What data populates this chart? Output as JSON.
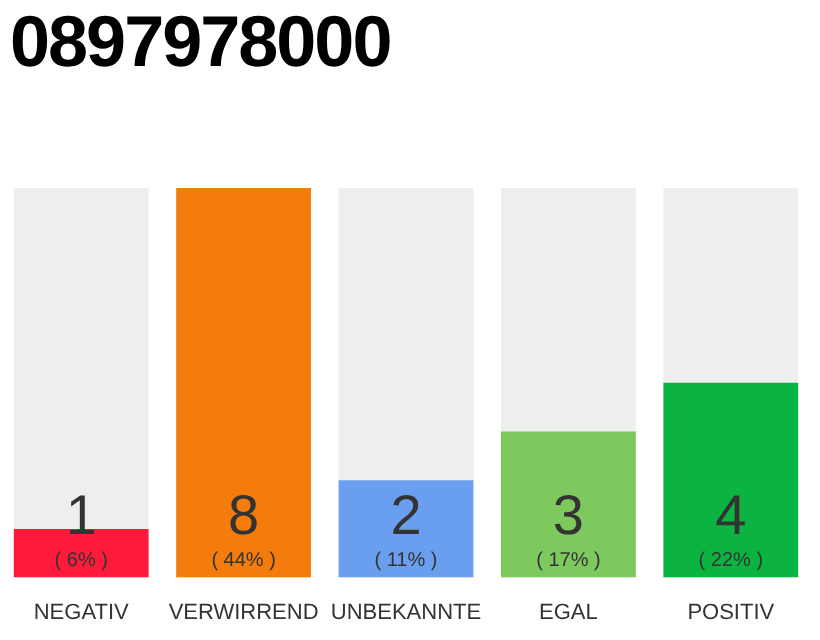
{
  "chart_data": {
    "type": "bar",
    "title": "0897978000",
    "categories": [
      "NEGATIV",
      "VERWIRREND",
      "UNBEKANNTE",
      "EGAL",
      "POSITIV"
    ],
    "values": [
      1,
      8,
      2,
      3,
      4
    ],
    "colors": [
      "#ff1a3c",
      "#f47c0c",
      "#6a9ff0",
      "#7dc95e",
      "#0bb440"
    ],
    "ylim": [
      0,
      8
    ],
    "tick_labels": "x",
    "grid": false,
    "legend": false,
    "data_labels": true,
    "annotations": [
      {
        "text": "( 6% )",
        "x": "NEGATIV",
        "y": 0
      },
      {
        "text": "( 44% )",
        "x": "VERWIRREND",
        "y": 0
      },
      {
        "text": "( 11% )",
        "x": "UNBEKANNTE",
        "y": 0
      },
      {
        "text": "( 17% )",
        "x": "EGAL",
        "y": 0
      },
      {
        "text": "( 22% )",
        "x": "POSITIV",
        "y": 0
      }
    ]
  }
}
